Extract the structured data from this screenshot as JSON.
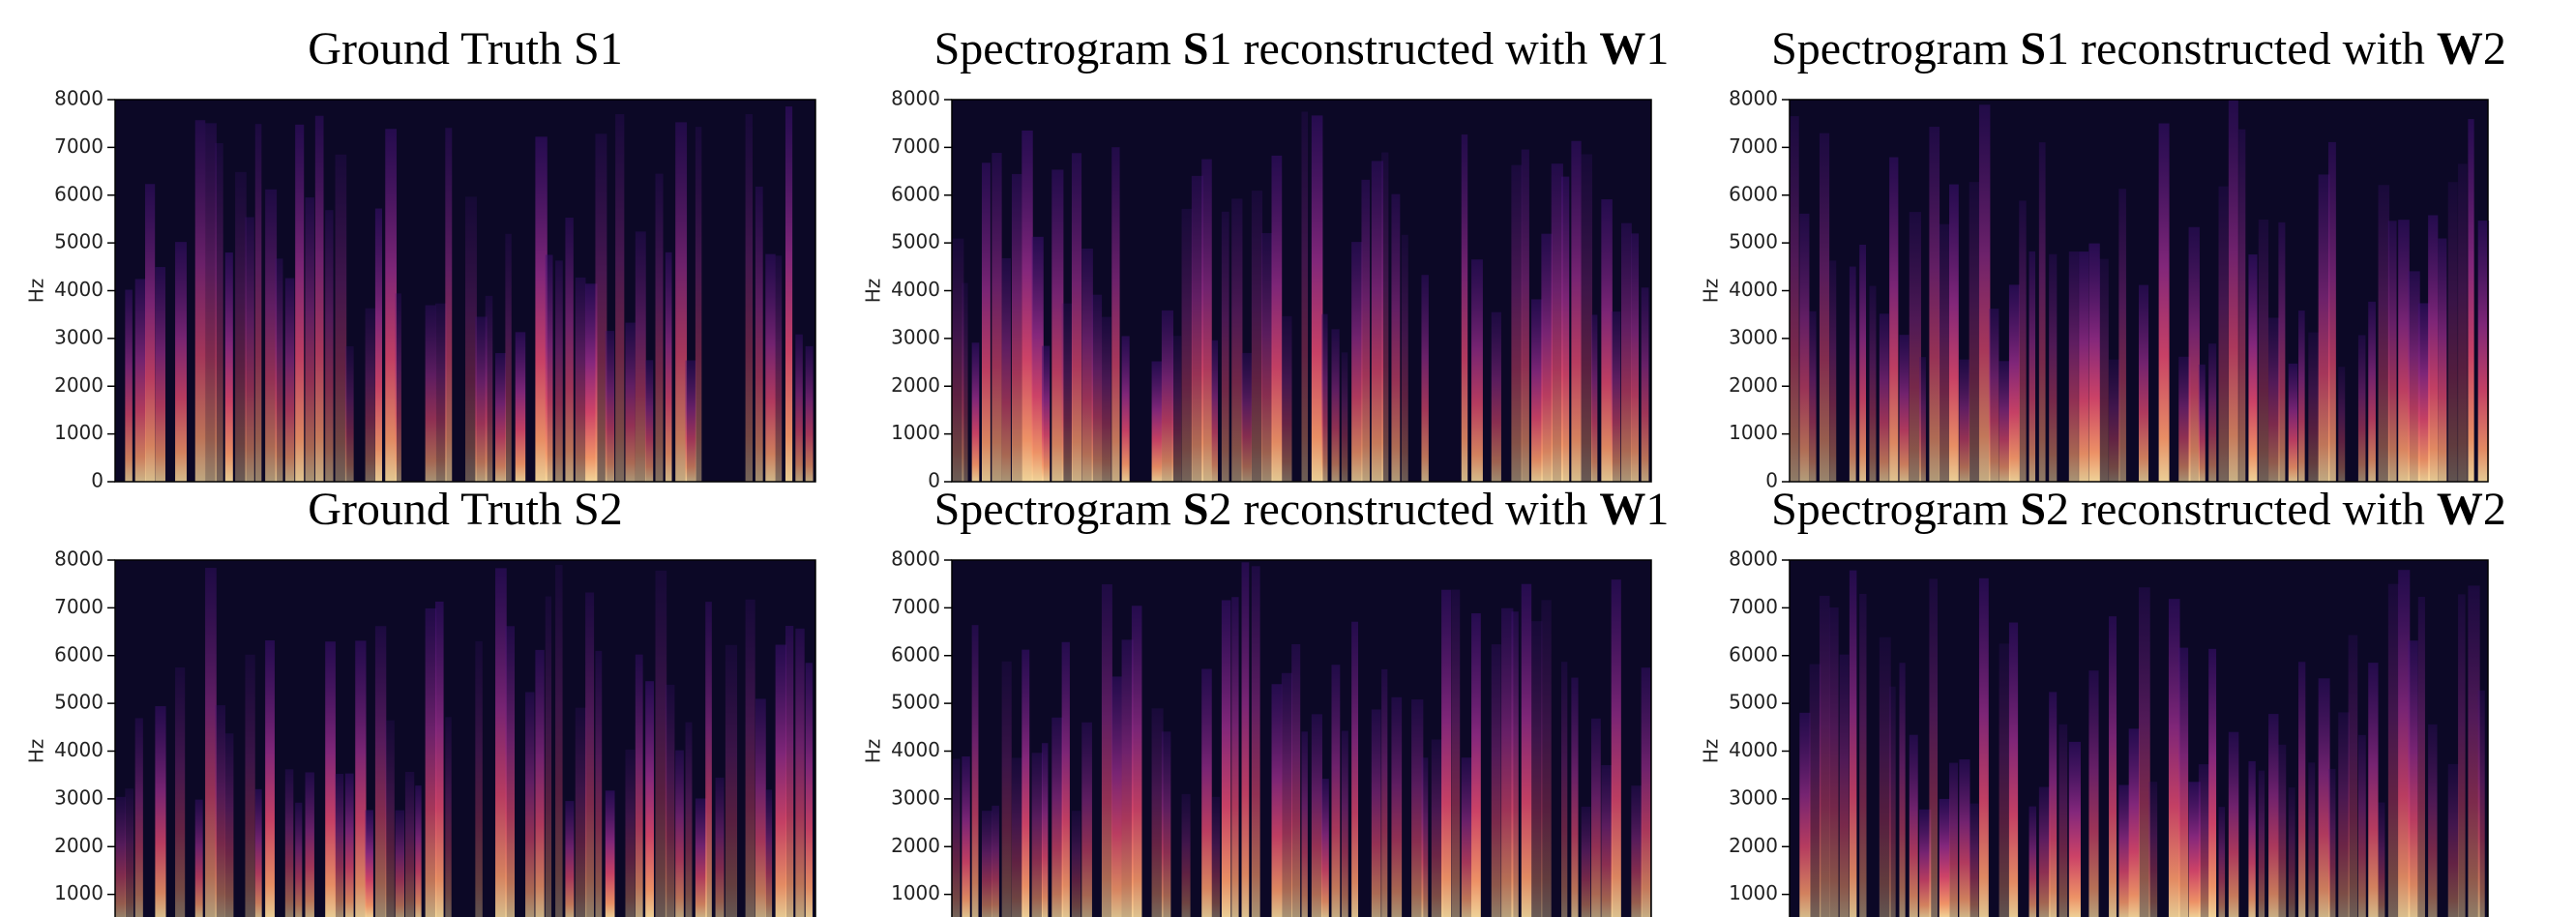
{
  "chart_data": [
    {
      "type": "spectrogram",
      "title": [
        {
          "text": "Ground Truth S1",
          "bold": false
        }
      ],
      "ylabel": "Hz",
      "ylim": [
        0,
        8000
      ],
      "yticks": [
        0,
        1000,
        2000,
        3000,
        4000,
        5000,
        6000,
        7000,
        8000
      ]
    },
    {
      "type": "spectrogram",
      "title": [
        {
          "text": "Spectrogram ",
          "bold": false
        },
        {
          "text": "S",
          "bold": true
        },
        {
          "text": "1 reconstructed with ",
          "bold": false
        },
        {
          "text": "W",
          "bold": true
        },
        {
          "text": "1",
          "bold": false
        }
      ],
      "ylabel": "Hz",
      "ylim": [
        0,
        8000
      ],
      "yticks": [
        0,
        1000,
        2000,
        3000,
        4000,
        5000,
        6000,
        7000,
        8000
      ]
    },
    {
      "type": "spectrogram",
      "title": [
        {
          "text": "Spectrogram ",
          "bold": false
        },
        {
          "text": "S",
          "bold": true
        },
        {
          "text": "1 reconstructed with ",
          "bold": false
        },
        {
          "text": "W",
          "bold": true
        },
        {
          "text": "2",
          "bold": false
        }
      ],
      "ylabel": "Hz",
      "ylim": [
        0,
        8000
      ],
      "yticks": [
        0,
        1000,
        2000,
        3000,
        4000,
        5000,
        6000,
        7000,
        8000
      ]
    },
    {
      "type": "spectrogram",
      "title": [
        {
          "text": "Ground Truth S2",
          "bold": false
        }
      ],
      "ylabel": "Hz",
      "ylim": [
        500,
        8000
      ],
      "yticks": [
        1000,
        2000,
        3000,
        4000,
        5000,
        6000,
        7000,
        8000
      ]
    },
    {
      "type": "spectrogram",
      "title": [
        {
          "text": "Spectrogram ",
          "bold": false
        },
        {
          "text": "S",
          "bold": true
        },
        {
          "text": "2 reconstructed with ",
          "bold": false
        },
        {
          "text": "W",
          "bold": true
        },
        {
          "text": "1",
          "bold": false
        }
      ],
      "ylabel": "Hz",
      "ylim": [
        500,
        8000
      ],
      "yticks": [
        1000,
        2000,
        3000,
        4000,
        5000,
        6000,
        7000,
        8000
      ]
    },
    {
      "type": "spectrogram",
      "title": [
        {
          "text": "Spectrogram ",
          "bold": false
        },
        {
          "text": "S",
          "bold": true
        },
        {
          "text": "2 reconstructed with ",
          "bold": false
        },
        {
          "text": "W",
          "bold": true
        },
        {
          "text": "2",
          "bold": false
        }
      ],
      "ylabel": "Hz",
      "ylim": [
        500,
        8000
      ],
      "yticks": [
        1000,
        2000,
        3000,
        4000,
        5000,
        6000,
        7000,
        8000
      ]
    }
  ]
}
